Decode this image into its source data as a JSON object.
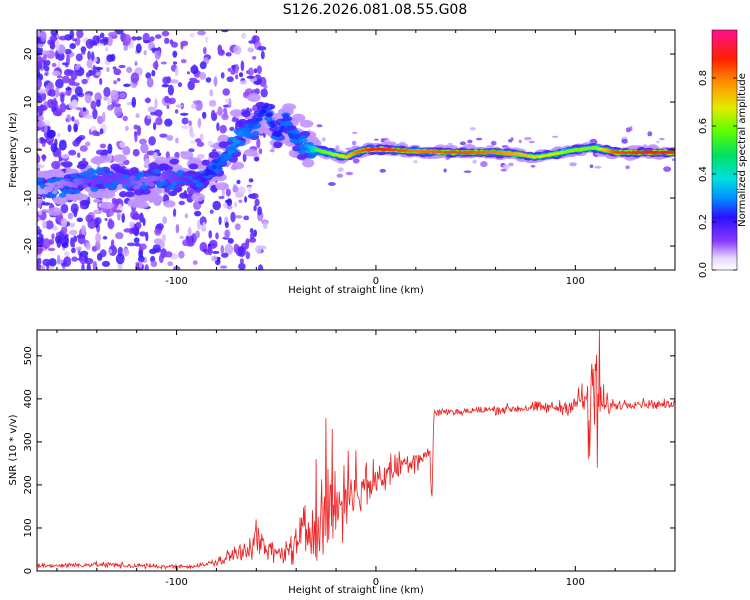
{
  "page_title": "S126.2026.081.08.55.G08",
  "chart_data": [
    {
      "type": "heatmap",
      "title": "S126.2026.081.08.55.G08",
      "xlabel": "Height of straight line (km)",
      "ylabel": "Frequency (Hz)",
      "xlim": [
        -170,
        150
      ],
      "ylim": [
        -25,
        25
      ],
      "x_ticks": [
        -100,
        0,
        100
      ],
      "y_ticks": [
        -20,
        -10,
        0,
        10,
        20
      ],
      "colorbar": {
        "label": "Normalized spectral amplitude",
        "range": [
          0.0,
          1.0
        ],
        "ticks": [
          0.0,
          0.2,
          0.4,
          0.6,
          0.8
        ],
        "tick_labels": [
          "0.0",
          "0.2",
          "0.4",
          "0.6",
          "0.8"
        ]
      },
      "trace": {
        "x": [
          -170,
          -150,
          -140,
          -130,
          -120,
          -110,
          -100,
          -90,
          -85,
          -80,
          -75,
          -70,
          -65,
          -60,
          -55,
          -50,
          -45,
          -40,
          -35,
          -30,
          -25,
          -20,
          -15,
          -10,
          -5,
          0,
          10,
          20,
          40,
          60,
          70,
          80,
          90,
          100,
          110,
          120,
          150
        ],
        "y": [
          -8,
          -7,
          -6,
          -6,
          -7,
          -6,
          -6,
          -6,
          -5,
          -3,
          -1,
          2,
          4,
          6,
          9,
          3,
          6,
          2,
          1,
          0,
          -0.5,
          -1,
          -1.5,
          -0.5,
          0,
          0.2,
          0,
          -0.3,
          -0.5,
          -0.5,
          -0.8,
          -1.5,
          -0.8,
          0,
          0.5,
          -0.5,
          -0.5
        ],
        "amplitude": [
          0.1,
          0.15,
          0.2,
          0.2,
          0.15,
          0.15,
          0.2,
          0.25,
          0.3,
          0.35,
          0.4,
          0.45,
          0.4,
          0.35,
          0.3,
          0.3,
          0.35,
          0.35,
          0.45,
          0.55,
          0.6,
          0.65,
          0.7,
          0.8,
          0.85,
          0.9,
          0.85,
          0.8,
          0.85,
          0.8,
          0.75,
          0.7,
          0.65,
          0.6,
          0.6,
          0.85,
          0.9
        ]
      }
    },
    {
      "type": "line",
      "xlabel": "Height of straight line (km)",
      "ylabel": "SNR (10 * v/v)",
      "xlim": [
        -170,
        150
      ],
      "ylim": [
        0,
        560
      ],
      "x_ticks": [
        -100,
        0,
        100
      ],
      "y_ticks": [
        0,
        100,
        200,
        300,
        400,
        500
      ],
      "series": [
        {
          "name": "SNR",
          "color": "#ee2020",
          "x": [
            -170,
            -140,
            -120,
            -100,
            -90,
            -80,
            -70,
            -60,
            -55,
            -50,
            -45,
            -40,
            -35,
            -30,
            -25,
            -20,
            -15,
            -10,
            -5,
            0,
            5,
            10,
            15,
            20,
            25,
            27,
            28,
            29,
            30,
            40,
            60,
            80,
            95,
            100,
            105,
            108,
            110,
            112,
            115,
            120,
            130,
            150
          ],
          "y": [
            12,
            15,
            12,
            10,
            12,
            20,
            40,
            70,
            50,
            40,
            45,
            60,
            90,
            110,
            130,
            150,
            170,
            180,
            200,
            210,
            225,
            240,
            255,
            260,
            270,
            280,
            150,
            360,
            370,
            370,
            375,
            380,
            380,
            390,
            400,
            320,
            420,
            380,
            385,
            385,
            390,
            385
          ],
          "noise": [
            5,
            6,
            6,
            5,
            5,
            8,
            25,
            35,
            25,
            20,
            25,
            40,
            70,
            80,
            90,
            70,
            65,
            55,
            45,
            40,
            40,
            35,
            30,
            25,
            20,
            15,
            8,
            10,
            10,
            8,
            10,
            12,
            15,
            20,
            60,
            150,
            160,
            90,
            25,
            12,
            10,
            10
          ],
          "spikes": [
            [
              -60,
              120
            ],
            [
              -30,
              260
            ],
            [
              -25,
              355
            ],
            [
              -22,
              330
            ],
            [
              -14,
              280
            ],
            [
              -10,
              280
            ],
            [
              112,
              560
            ],
            [
              109,
              470
            ],
            [
              111,
              240
            ]
          ]
        }
      ]
    }
  ]
}
